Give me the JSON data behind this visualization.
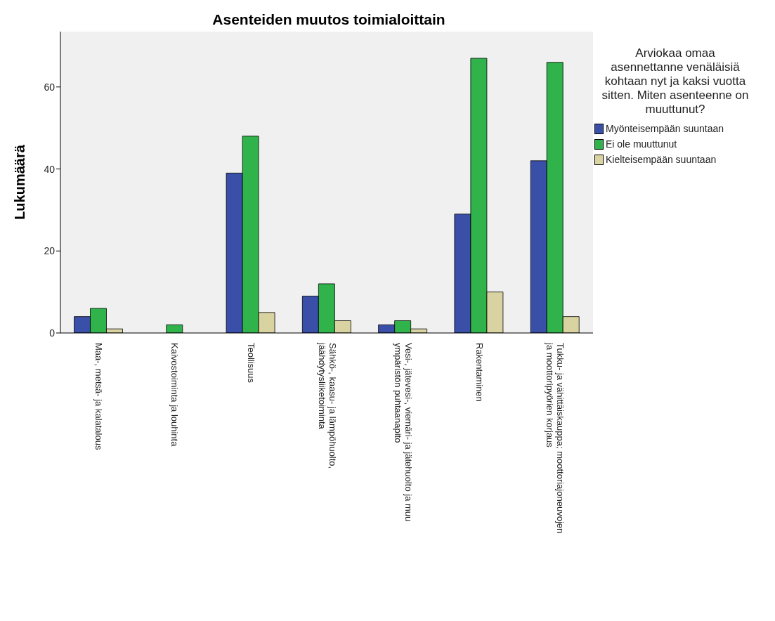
{
  "chart_data": {
    "type": "bar",
    "title": "Asenteiden muutos toimialoittain",
    "ylabel": "Lukumäärä",
    "legend_title": "Arviokaa omaa asennettanne venäläisiä kohtaan nyt ja kaksi vuotta sitten. Miten asenteenne on muuttunut?",
    "categories": [
      "Maa-, metsä- ja kalatalous",
      "Kaivostoiminta ja louhinta",
      "Teollisuus",
      "Sähkö-, kaasu- ja lämpöhuolto, jäähdytysliiketoiminta",
      "Vesi-, jätevesi-, viemäri- ja jätehuolto ja muu ympäristön puhtaanapito",
      "Rakentaminen",
      "Tukku- ja vähittäiskauppa; moottoriajoneuvojen ja moottoripyörien korjaus"
    ],
    "series": [
      {
        "name": "Myönteisempään suuntaan",
        "color": "#3a50a8",
        "values": [
          4,
          null,
          39,
          9,
          2,
          29,
          42
        ]
      },
      {
        "name": "Ei ole muuttunut",
        "color": "#2fb34a",
        "values": [
          6,
          2,
          48,
          12,
          3,
          67,
          66
        ]
      },
      {
        "name": "Kielteisempään suuntaan",
        "color": "#d8d3a0",
        "values": [
          1,
          null,
          5,
          3,
          1,
          10,
          4
        ]
      }
    ],
    "ylim": [
      0,
      73.5
    ],
    "yticks": [
      0,
      20,
      40,
      60
    ],
    "grid": false,
    "legend": "right"
  }
}
